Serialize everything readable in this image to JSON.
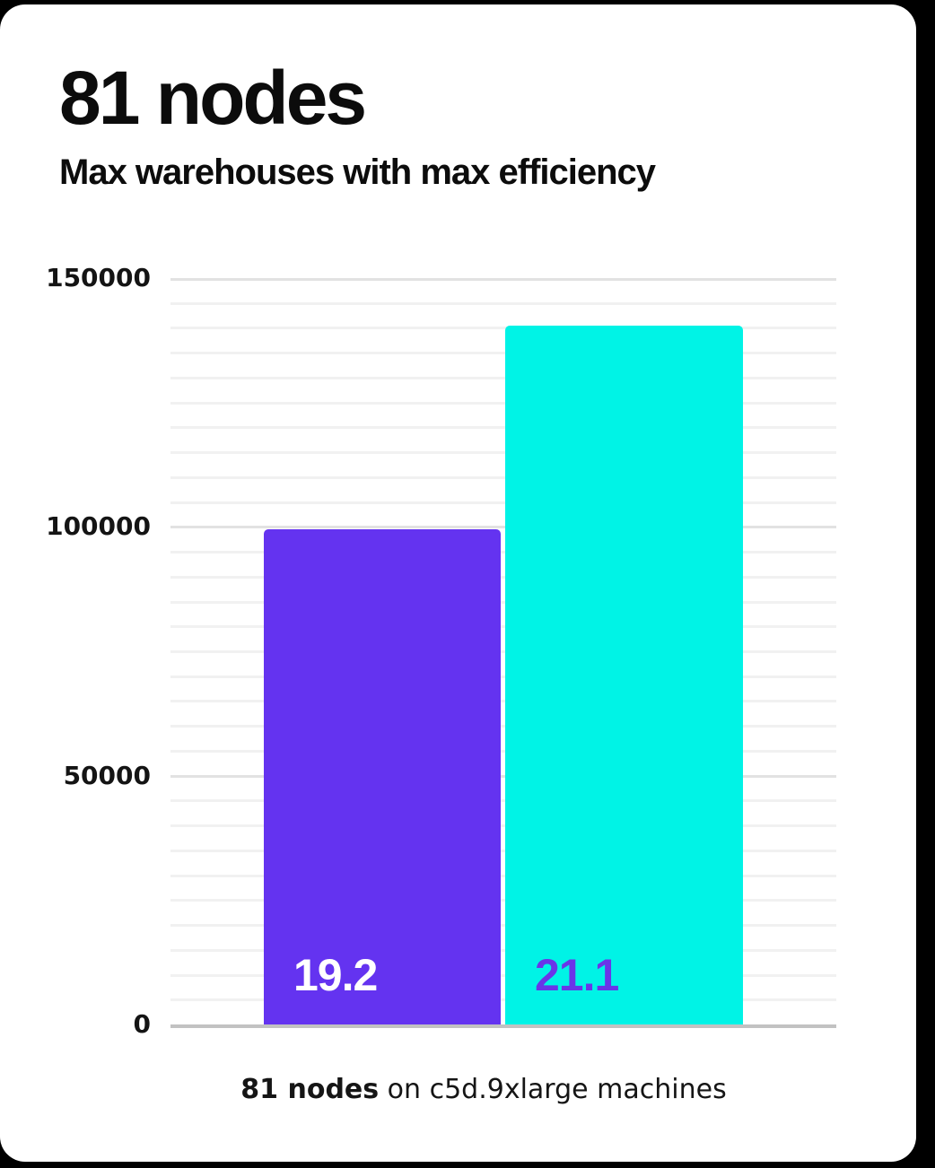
{
  "header": {
    "title": "81 nodes",
    "subtitle": "Max warehouses with max efficiency"
  },
  "caption": {
    "bold": "81 nodes",
    "rest": " on c5d.9xlarge machines"
  },
  "colors": {
    "background": "#000000",
    "card": "#ffffff",
    "text": "#0c0c0c",
    "purple_bar": "#6433f0",
    "cyan_bar": "#00f3e6",
    "label_on_purple": "#ffffff",
    "label_on_cyan": "#6a35e8",
    "grid_minor": "#f1f1f1",
    "grid_major": "#e2e2e2",
    "axis_line": "#c2c2c2"
  },
  "chart_data": {
    "type": "bar",
    "title": "81 nodes",
    "subtitle": "Max warehouses with max efficiency",
    "caption": "81 nodes on c5d.9xlarge machines",
    "xlabel": "",
    "ylabel": "",
    "ylim": [
      0,
      150000
    ],
    "yticks": [
      {
        "label": "0",
        "value": 0
      },
      {
        "label": "50000",
        "value": 50000
      },
      {
        "label": "100000",
        "value": 100000
      },
      {
        "label": "150000",
        "value": 150000
      }
    ],
    "minor_gridline_step": 5000,
    "major_gridline_step": 50000,
    "grid": true,
    "legend": false,
    "series": [
      {
        "name": "left-bar",
        "value": 99500,
        "bar_label": "19.2",
        "color": "#6433f0",
        "label_color": "#ffffff"
      },
      {
        "name": "right-bar",
        "value": 140400,
        "bar_label": "21.1",
        "color": "#00f3e6",
        "label_color": "#6a35e8"
      }
    ]
  }
}
